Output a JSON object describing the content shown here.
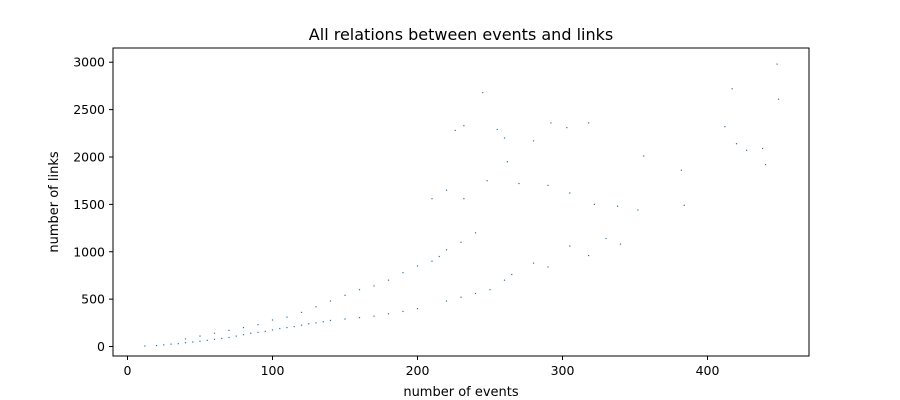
{
  "chart_data": {
    "type": "scatter",
    "title": "All relations between events and links",
    "xlabel": "number of events",
    "ylabel": "number of links",
    "xlim": [
      -10,
      470
    ],
    "ylim": [
      -100,
      3150
    ],
    "xticks": [
      0,
      100,
      200,
      300,
      400
    ],
    "yticks": [
      0,
      500,
      1000,
      1500,
      2000,
      2500,
      3000
    ],
    "xtick_labels": [
      "0",
      "100",
      "200",
      "300",
      "400"
    ],
    "ytick_labels": [
      "0",
      "500",
      "1000",
      "1500",
      "2000",
      "2500",
      "3000"
    ],
    "grid": false,
    "marker_color": "#1f77b4",
    "series": [
      {
        "points": [
          [
            12,
            5
          ],
          [
            20,
            10
          ],
          [
            25,
            18
          ],
          [
            30,
            25
          ],
          [
            35,
            30
          ],
          [
            40,
            40
          ],
          [
            45,
            48
          ],
          [
            50,
            55
          ],
          [
            55,
            65
          ],
          [
            60,
            75
          ],
          [
            65,
            85
          ],
          [
            70,
            95
          ],
          [
            75,
            110
          ],
          [
            80,
            125
          ],
          [
            85,
            140
          ],
          [
            90,
            150
          ],
          [
            95,
            160
          ],
          [
            100,
            175
          ],
          [
            105,
            190
          ],
          [
            110,
            200
          ],
          [
            115,
            210
          ],
          [
            120,
            225
          ],
          [
            125,
            240
          ],
          [
            130,
            250
          ],
          [
            135,
            262
          ],
          [
            140,
            275
          ],
          [
            150,
            290
          ],
          [
            160,
            305
          ],
          [
            170,
            320
          ],
          [
            180,
            345
          ],
          [
            190,
            370
          ],
          [
            200,
            400
          ],
          [
            40,
            80
          ],
          [
            50,
            110
          ],
          [
            60,
            140
          ],
          [
            70,
            170
          ],
          [
            80,
            200
          ],
          [
            90,
            230
          ],
          [
            100,
            280
          ],
          [
            110,
            310
          ],
          [
            120,
            360
          ],
          [
            130,
            420
          ],
          [
            140,
            480
          ],
          [
            150,
            540
          ],
          [
            160,
            600
          ],
          [
            170,
            640
          ],
          [
            180,
            700
          ],
          [
            190,
            780
          ],
          [
            200,
            850
          ],
          [
            210,
            900
          ],
          [
            215,
            950
          ],
          [
            220,
            1020
          ],
          [
            230,
            1100
          ],
          [
            240,
            1200
          ],
          [
            245,
            2680
          ],
          [
            226,
            2280
          ],
          [
            232,
            2330
          ],
          [
            255,
            2290
          ],
          [
            260,
            2200
          ],
          [
            280,
            2170
          ],
          [
            292,
            2360
          ],
          [
            303,
            2310
          ],
          [
            318,
            2360
          ],
          [
            210,
            1560
          ],
          [
            220,
            1650
          ],
          [
            232,
            1560
          ],
          [
            248,
            1750
          ],
          [
            262,
            1950
          ],
          [
            270,
            1720
          ],
          [
            290,
            1700
          ],
          [
            305,
            1620
          ],
          [
            322,
            1500
          ],
          [
            338,
            1480
          ],
          [
            352,
            1440
          ],
          [
            356,
            2010
          ],
          [
            382,
            1860
          ],
          [
            384,
            1490
          ],
          [
            412,
            2320
          ],
          [
            417,
            2720
          ],
          [
            420,
            2140
          ],
          [
            427,
            2070
          ],
          [
            438,
            2090
          ],
          [
            440,
            1920
          ],
          [
            448,
            2980
          ],
          [
            449,
            2610
          ],
          [
            280,
            880
          ],
          [
            290,
            840
          ],
          [
            305,
            1060
          ],
          [
            318,
            960
          ],
          [
            330,
            1140
          ],
          [
            340,
            1080
          ],
          [
            260,
            700
          ],
          [
            265,
            760
          ],
          [
            250,
            600
          ],
          [
            240,
            560
          ],
          [
            230,
            520
          ],
          [
            220,
            480
          ]
        ]
      }
    ]
  }
}
